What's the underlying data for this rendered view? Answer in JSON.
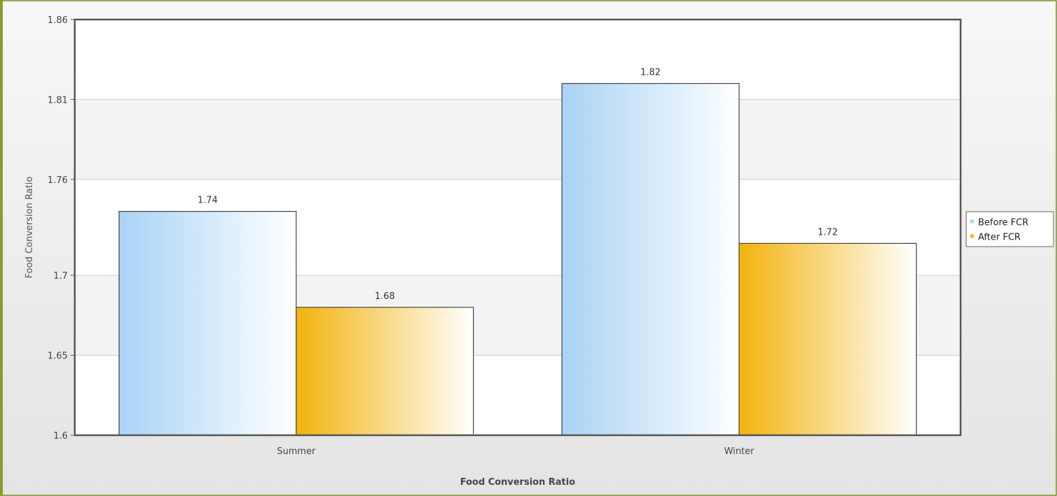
{
  "chart_data": {
    "type": "bar",
    "categories": [
      "Summer",
      "Winter"
    ],
    "series": [
      {
        "name": "Before FCR",
        "values": [
          1.74,
          1.82
        ],
        "color": "#a9d3f5"
      },
      {
        "name": "After FCR",
        "values": [
          1.68,
          1.72
        ],
        "color": "#f2b30e"
      }
    ],
    "data_labels": [
      [
        "1.74",
        "1.82"
      ],
      [
        "1.68",
        "1.72"
      ]
    ],
    "xlabel": "Food Conversion Ratio",
    "ylabel": "Food Conversion Ratio",
    "ylim": [
      1.6,
      1.86
    ],
    "yticks": [
      1.6,
      1.65,
      1.7,
      1.76,
      1.81,
      1.86
    ],
    "ytick_labels": [
      "1.6",
      "1.65",
      "1.7",
      "1.76",
      "1.81",
      "1.86"
    ],
    "grid": true,
    "legend_position": "right"
  }
}
